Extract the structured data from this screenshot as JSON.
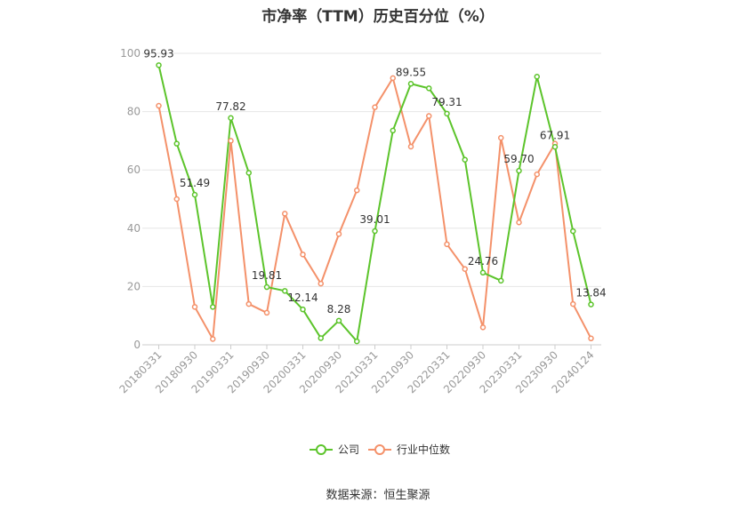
{
  "chart_data": {
    "type": "line",
    "title": "市净率（TTM）历史百分位（%）",
    "xlabel": "",
    "ylabel": "",
    "ylim": [
      0,
      100
    ],
    "yticks": [
      0,
      20,
      40,
      60,
      80,
      100
    ],
    "grid": true,
    "legend_position": "bottom",
    "x": [
      "20180331",
      "20180630",
      "20180930",
      "20181231",
      "20190331",
      "20190630",
      "20190930",
      "20191231",
      "20200331",
      "20200630",
      "20200930",
      "20201231",
      "20210331",
      "20210630",
      "20210930",
      "20211231",
      "20220331",
      "20220630",
      "20220930",
      "20221231",
      "20230331",
      "20230630",
      "20230930",
      "20231231",
      "20240124"
    ],
    "x_tick_labels": [
      "20180331",
      "20180930",
      "20190331",
      "20190930",
      "20200331",
      "20200930",
      "20210331",
      "20210930",
      "20220331",
      "20220930",
      "20230331",
      "20230930",
      "20240124"
    ],
    "series": [
      {
        "name": "公司",
        "color": "#5cc42b",
        "values": [
          95.93,
          69,
          51.49,
          13,
          77.82,
          59,
          19.81,
          18.5,
          12.14,
          2.3,
          8.28,
          1.2,
          39.01,
          73.5,
          89.55,
          88,
          79.31,
          63.5,
          24.76,
          22,
          59.7,
          92,
          67.91,
          39,
          13.84
        ],
        "labels": {
          "0": "95.93",
          "2": "51.49",
          "4": "77.82",
          "6": "19.81",
          "8": "12.14",
          "10": "8.28",
          "12": "39.01",
          "14": "89.55",
          "16": "79.31",
          "18": "24.76",
          "20": "59.70",
          "22": "67.91",
          "24": "13.84"
        }
      },
      {
        "name": "行业中位数",
        "color": "#f4916a",
        "values": [
          82,
          50,
          13,
          2,
          70,
          14,
          11,
          45,
          31,
          21,
          38,
          53,
          81.5,
          91.5,
          68,
          78.5,
          34.5,
          26,
          6,
          71,
          42,
          58.5,
          69,
          14,
          2.2
        ]
      }
    ]
  },
  "legend": {
    "company": "公司",
    "industry": "行业中位数"
  },
  "source": "数据来源：恒生聚源"
}
